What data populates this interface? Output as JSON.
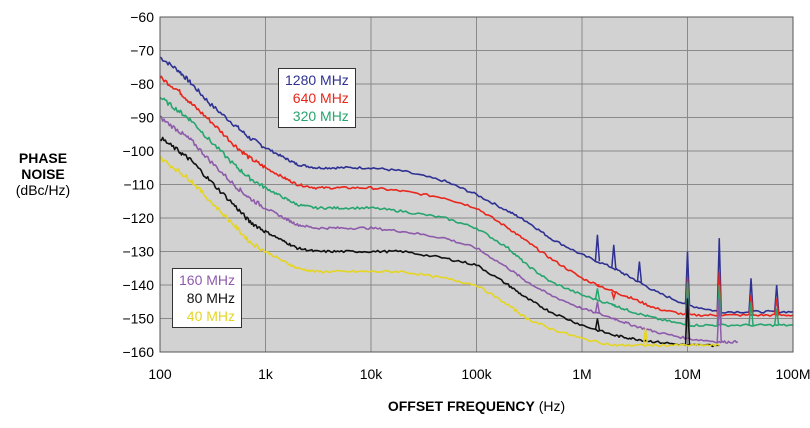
{
  "chart_data": {
    "type": "line",
    "ylabel_main": "PHASE NOISE",
    "ylabel_unit": "(dBc/Hz)",
    "xlabel_main": "OFFSET FREQUENCY",
    "xlabel_unit": "(Hz)",
    "x_scale": "log",
    "xlim": [
      100,
      100000000
    ],
    "ylim": [
      -160,
      -60
    ],
    "x_ticks": [
      {
        "value": 100,
        "label": "100"
      },
      {
        "value": 1000,
        "label": "1k"
      },
      {
        "value": 10000,
        "label": "10k"
      },
      {
        "value": 100000,
        "label": "100k"
      },
      {
        "value": 1000000,
        "label": "1M"
      },
      {
        "value": 10000000,
        "label": "10M"
      },
      {
        "value": 100000000,
        "label": "100M"
      }
    ],
    "y_ticks": [
      {
        "value": -60,
        "label": "−60"
      },
      {
        "value": -70,
        "label": "−70"
      },
      {
        "value": -80,
        "label": "−80"
      },
      {
        "value": -90,
        "label": "−90"
      },
      {
        "value": -100,
        "label": "−100"
      },
      {
        "value": -110,
        "label": "−110"
      },
      {
        "value": -120,
        "label": "−120"
      },
      {
        "value": -130,
        "label": "−130"
      },
      {
        "value": -140,
        "label": "−140"
      },
      {
        "value": -150,
        "label": "−150"
      },
      {
        "value": -160,
        "label": "−160"
      }
    ],
    "grid": true,
    "series": [
      {
        "name": "1280 MHz",
        "color": "#2e3192",
        "points": [
          [
            100,
            -72
          ],
          [
            150,
            -76
          ],
          [
            200,
            -80
          ],
          [
            300,
            -86
          ],
          [
            500,
            -92
          ],
          [
            700,
            -96
          ],
          [
            1000,
            -99
          ],
          [
            1500,
            -102
          ],
          [
            2000,
            -104
          ],
          [
            3000,
            -105
          ],
          [
            5000,
            -105
          ],
          [
            10000,
            -105
          ],
          [
            20000,
            -106
          ],
          [
            50000,
            -109
          ],
          [
            100000,
            -113
          ],
          [
            200000,
            -118
          ],
          [
            300000,
            -121
          ],
          [
            500000,
            -126
          ],
          [
            1000000,
            -131
          ],
          [
            2000000,
            -135
          ],
          [
            3000000,
            -138
          ],
          [
            5000000,
            -142
          ],
          [
            10000000,
            -146
          ],
          [
            20000000,
            -148
          ],
          [
            50000000,
            -148
          ],
          [
            100000000,
            -148
          ]
        ],
        "spikes": [
          [
            1400000,
            -125
          ],
          [
            2000000,
            -128
          ],
          [
            3500000,
            -133
          ],
          [
            10000000,
            -130
          ],
          [
            20000000,
            -126
          ],
          [
            40000000,
            -138
          ],
          [
            70000000,
            -140
          ]
        ]
      },
      {
        "name": "640 MHz",
        "color": "#e8261c",
        "points": [
          [
            100,
            -78
          ],
          [
            150,
            -82
          ],
          [
            200,
            -86
          ],
          [
            300,
            -91
          ],
          [
            500,
            -98
          ],
          [
            700,
            -102
          ],
          [
            1000,
            -105
          ],
          [
            1500,
            -108
          ],
          [
            2000,
            -110
          ],
          [
            3000,
            -111
          ],
          [
            5000,
            -111
          ],
          [
            10000,
            -111
          ],
          [
            20000,
            -112
          ],
          [
            50000,
            -114
          ],
          [
            100000,
            -117
          ],
          [
            200000,
            -123
          ],
          [
            300000,
            -127
          ],
          [
            500000,
            -132
          ],
          [
            1000000,
            -138
          ],
          [
            2000000,
            -142
          ],
          [
            3000000,
            -144
          ],
          [
            5000000,
            -147
          ],
          [
            10000000,
            -149
          ],
          [
            20000000,
            -149
          ],
          [
            50000000,
            -149
          ],
          [
            100000000,
            -149
          ]
        ],
        "spikes": [
          [
            1400000,
            -140
          ],
          [
            2000000,
            -144
          ],
          [
            10000000,
            -138
          ],
          [
            20000000,
            -136
          ],
          [
            40000000,
            -143
          ],
          [
            70000000,
            -144
          ]
        ]
      },
      {
        "name": "320 MHz",
        "color": "#27a56f",
        "points": [
          [
            100,
            -84
          ],
          [
            150,
            -88
          ],
          [
            200,
            -91
          ],
          [
            300,
            -97
          ],
          [
            500,
            -104
          ],
          [
            700,
            -108
          ],
          [
            1000,
            -111
          ],
          [
            1500,
            -114
          ],
          [
            2000,
            -116
          ],
          [
            3000,
            -117
          ],
          [
            5000,
            -117
          ],
          [
            10000,
            -117
          ],
          [
            20000,
            -118
          ],
          [
            50000,
            -120
          ],
          [
            100000,
            -123
          ],
          [
            200000,
            -129
          ],
          [
            300000,
            -134
          ],
          [
            500000,
            -139
          ],
          [
            1000000,
            -143
          ],
          [
            2000000,
            -146
          ],
          [
            3000000,
            -148
          ],
          [
            5000000,
            -150
          ],
          [
            10000000,
            -152
          ],
          [
            20000000,
            -152
          ],
          [
            50000000,
            -152
          ],
          [
            100000000,
            -152
          ]
        ],
        "spikes": [
          [
            1400000,
            -141
          ],
          [
            2000000,
            -146
          ],
          [
            10000000,
            -139
          ],
          [
            20000000,
            -140
          ],
          [
            40000000,
            -145
          ],
          [
            70000000,
            -147
          ]
        ]
      },
      {
        "name": "160 MHz",
        "color": "#8e5bab",
        "points": [
          [
            100,
            -90
          ],
          [
            150,
            -94
          ],
          [
            200,
            -97
          ],
          [
            300,
            -103
          ],
          [
            500,
            -110
          ],
          [
            700,
            -114
          ],
          [
            1000,
            -117
          ],
          [
            1500,
            -120
          ],
          [
            2000,
            -122
          ],
          [
            3000,
            -123
          ],
          [
            5000,
            -123
          ],
          [
            10000,
            -123
          ],
          [
            20000,
            -124
          ],
          [
            50000,
            -126
          ],
          [
            100000,
            -129
          ],
          [
            200000,
            -135
          ],
          [
            300000,
            -139
          ],
          [
            500000,
            -143
          ],
          [
            1000000,
            -147
          ],
          [
            2000000,
            -150
          ],
          [
            3000000,
            -152
          ],
          [
            5000000,
            -154
          ],
          [
            10000000,
            -156
          ],
          [
            20000000,
            -157
          ],
          [
            30000000,
            -157
          ]
        ],
        "spikes": [
          [
            1400000,
            -145
          ],
          [
            2000000,
            -150
          ],
          [
            10000000,
            -143
          ],
          [
            20000000,
            -144
          ]
        ]
      },
      {
        "name": "80 MHz",
        "color": "#111111",
        "points": [
          [
            100,
            -96
          ],
          [
            150,
            -100
          ],
          [
            200,
            -103
          ],
          [
            300,
            -109
          ],
          [
            500,
            -116
          ],
          [
            700,
            -121
          ],
          [
            1000,
            -124
          ],
          [
            1500,
            -127
          ],
          [
            2000,
            -129
          ],
          [
            3000,
            -130
          ],
          [
            5000,
            -130
          ],
          [
            10000,
            -130
          ],
          [
            20000,
            -130
          ],
          [
            50000,
            -132
          ],
          [
            100000,
            -134
          ],
          [
            200000,
            -140
          ],
          [
            300000,
            -144
          ],
          [
            500000,
            -148
          ],
          [
            1000000,
            -152
          ],
          [
            2000000,
            -155
          ],
          [
            3000000,
            -156
          ],
          [
            5000000,
            -157
          ],
          [
            10000000,
            -158
          ],
          [
            20000000,
            -158
          ]
        ],
        "spikes": [
          [
            1400000,
            -150
          ],
          [
            10000000,
            -144
          ]
        ]
      },
      {
        "name": "40 MHz",
        "color": "#e5d522",
        "points": [
          [
            100,
            -102
          ],
          [
            150,
            -106
          ],
          [
            200,
            -109
          ],
          [
            300,
            -115
          ],
          [
            500,
            -122
          ],
          [
            700,
            -127
          ],
          [
            1000,
            -130
          ],
          [
            1500,
            -133
          ],
          [
            2000,
            -135
          ],
          [
            3000,
            -136
          ],
          [
            5000,
            -136
          ],
          [
            10000,
            -136
          ],
          [
            20000,
            -136
          ],
          [
            50000,
            -138
          ],
          [
            100000,
            -140
          ],
          [
            200000,
            -146
          ],
          [
            300000,
            -150
          ],
          [
            500000,
            -153
          ],
          [
            1000000,
            -156
          ],
          [
            2000000,
            -158
          ],
          [
            3000000,
            -158
          ],
          [
            5000000,
            -158
          ],
          [
            10000000,
            -158
          ],
          [
            20000000,
            -158
          ]
        ],
        "spikes": [
          [
            4000000,
            -153
          ]
        ]
      }
    ],
    "legend_upper": [
      "1280 MHz",
      "640 MHz",
      "320 MHz"
    ],
    "legend_lower": [
      "160 MHz",
      "80 MHz",
      "40 MHz"
    ]
  }
}
